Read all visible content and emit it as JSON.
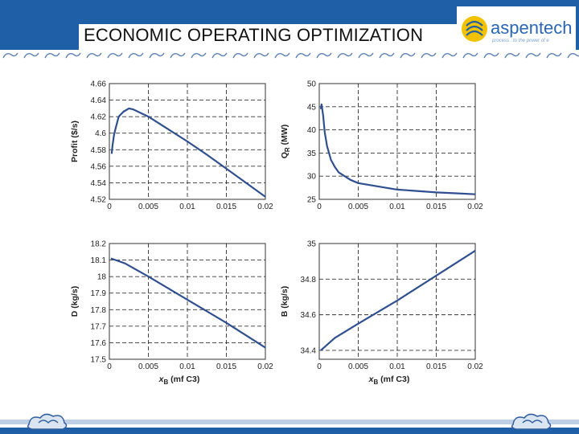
{
  "slide": {
    "title": "ECONOMIC OPERATING OPTIMIZATION"
  },
  "logo": {
    "text": "aspentech",
    "tagline": "process . to the power of e"
  },
  "colors": {
    "header_blue": "#1e5fa8",
    "line_color": "#2f4f8f"
  },
  "chart_data": [
    {
      "type": "line",
      "position": "top-left",
      "xlabel": "",
      "ylabel": "Profit ($/s)",
      "xlim": [
        0,
        0.02
      ],
      "ylim": [
        4.52,
        4.66
      ],
      "xticks": [
        "0",
        "0.005",
        "0.01",
        "0.015",
        "0.02"
      ],
      "yticks": [
        "4.52",
        "4.54",
        "4.56",
        "4.58",
        "4.6",
        "4.62",
        "4.64",
        "4.66"
      ],
      "grid": true,
      "series": [
        {
          "x": [
            0.0003,
            0.0004,
            0.0006,
            0.0008,
            0.0012,
            0.0018,
            0.0025,
            0.003,
            0.005,
            0.0075,
            0.01,
            0.0125,
            0.015,
            0.0175,
            0.02
          ],
          "y": [
            4.575,
            4.585,
            4.598,
            4.606,
            4.62,
            4.626,
            4.63,
            4.629,
            4.62,
            4.605,
            4.59,
            4.574,
            4.557,
            4.54,
            4.523
          ]
        }
      ]
    },
    {
      "type": "line",
      "position": "top-right",
      "xlabel": "",
      "ylabel": "QR (MW)",
      "xlim": [
        0,
        0.02
      ],
      "ylim": [
        25,
        50
      ],
      "xticks": [
        "0",
        "0.005",
        "0.01",
        "0.015",
        "0.02"
      ],
      "yticks": [
        "25",
        "30",
        "35",
        "40",
        "45",
        "50"
      ],
      "grid": true,
      "series": [
        {
          "x": [
            0.0002,
            0.0003,
            0.0005,
            0.0007,
            0.001,
            0.0015,
            0.002,
            0.0025,
            0.004,
            0.005,
            0.0075,
            0.01,
            0.0125,
            0.015,
            0.0175,
            0.02
          ],
          "y": [
            44.5,
            45.5,
            43,
            39.5,
            36.5,
            33.5,
            32,
            30.8,
            29.2,
            28.5,
            27.8,
            27.1,
            26.8,
            26.5,
            26.3,
            26.1
          ]
        }
      ]
    },
    {
      "type": "line",
      "position": "bottom-left",
      "xlabel": "xB (mf C3)",
      "ylabel": "D (kg/s)",
      "xlim": [
        0,
        0.02
      ],
      "ylim": [
        17.5,
        18.2
      ],
      "xticks": [
        "0",
        "0.005",
        "0.01",
        "0.015",
        "0.02"
      ],
      "yticks": [
        "17.5",
        "17.6",
        "17.7",
        "17.8",
        "17.9",
        "18",
        "18.1",
        "18.2"
      ],
      "grid": true,
      "series": [
        {
          "x": [
            0.0002,
            0.002,
            0.005,
            0.01,
            0.015,
            0.02
          ],
          "y": [
            18.11,
            18.08,
            18.0,
            17.86,
            17.72,
            17.57
          ]
        }
      ]
    },
    {
      "type": "line",
      "position": "bottom-right",
      "xlabel": "xB (mf C3)",
      "ylabel": "B (kg/s)",
      "xlim": [
        0,
        0.02
      ],
      "ylim": [
        34.35,
        35
      ],
      "xticks": [
        "0",
        "0.005",
        "0.01",
        "0.015",
        "0.02"
      ],
      "yticks": [
        "34.4",
        "34.6",
        "34.8",
        "35"
      ],
      "grid": true,
      "series": [
        {
          "x": [
            0.0002,
            0.002,
            0.005,
            0.01,
            0.015,
            0.02
          ],
          "y": [
            34.4,
            34.47,
            34.55,
            34.68,
            34.82,
            34.96
          ]
        }
      ]
    }
  ]
}
